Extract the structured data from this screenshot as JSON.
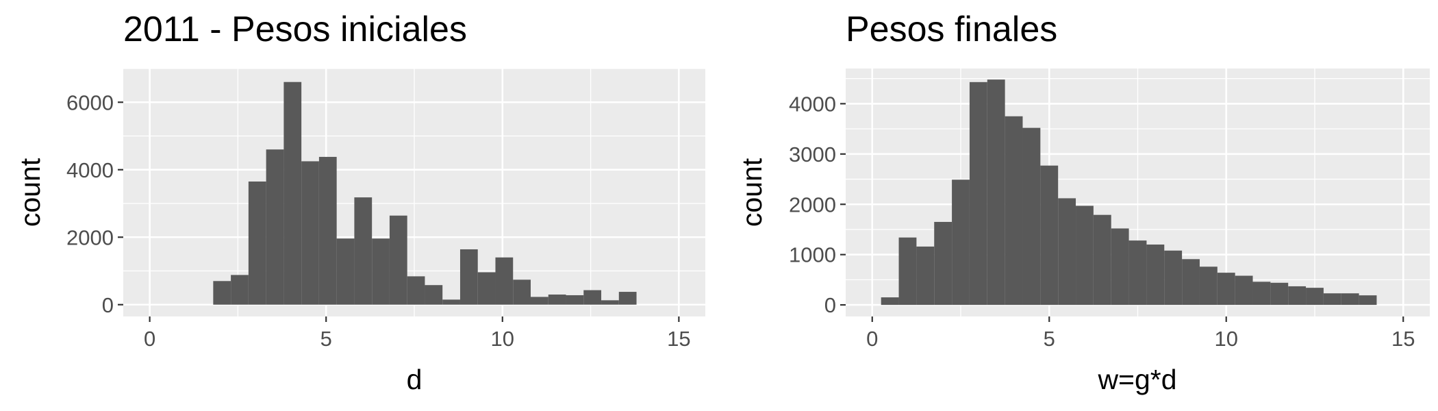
{
  "chart_data": [
    {
      "type": "bar",
      "title": "2011 - Pesos iniciales",
      "xlabel": "d",
      "ylabel": "count",
      "xlim": [
        -0.75,
        15.75
      ],
      "ylim": [
        -350,
        7000
      ],
      "xticks": [
        0,
        5,
        10,
        15
      ],
      "xtick_labels": [
        "0",
        "5",
        "10",
        "15"
      ],
      "yticks": [
        0,
        2000,
        4000,
        6000
      ],
      "ytick_labels": [
        "0",
        "2000",
        "4000",
        "6000"
      ],
      "grid": true,
      "bin_width": 0.5,
      "bins": [
        {
          "x0": 1.8,
          "count": 700
        },
        {
          "x0": 2.3,
          "count": 880
        },
        {
          "x0": 2.8,
          "count": 3650
        },
        {
          "x0": 3.3,
          "count": 4600
        },
        {
          "x0": 3.8,
          "count": 6600
        },
        {
          "x0": 4.3,
          "count": 4250
        },
        {
          "x0": 4.8,
          "count": 4380
        },
        {
          "x0": 5.3,
          "count": 1960
        },
        {
          "x0": 5.8,
          "count": 3180
        },
        {
          "x0": 6.3,
          "count": 1960
        },
        {
          "x0": 6.8,
          "count": 2640
        },
        {
          "x0": 7.3,
          "count": 840
        },
        {
          "x0": 7.8,
          "count": 580
        },
        {
          "x0": 8.3,
          "count": 150
        },
        {
          "x0": 8.8,
          "count": 1640
        },
        {
          "x0": 9.3,
          "count": 960
        },
        {
          "x0": 9.8,
          "count": 1400
        },
        {
          "x0": 10.3,
          "count": 740
        },
        {
          "x0": 10.8,
          "count": 230
        },
        {
          "x0": 11.3,
          "count": 300
        },
        {
          "x0": 11.8,
          "count": 280
        },
        {
          "x0": 12.3,
          "count": 430
        },
        {
          "x0": 12.8,
          "count": 130
        },
        {
          "x0": 13.3,
          "count": 380
        }
      ]
    },
    {
      "type": "bar",
      "title": "Pesos finales",
      "xlabel": "w=g*d",
      "ylabel": "count",
      "xlim": [
        -0.75,
        15.75
      ],
      "ylim": [
        -230,
        4700
      ],
      "xticks": [
        0,
        5,
        10,
        15
      ],
      "xtick_labels": [
        "0",
        "5",
        "10",
        "15"
      ],
      "yticks": [
        0,
        1000,
        2000,
        3000,
        4000
      ],
      "ytick_labels": [
        "0",
        "1000",
        "2000",
        "3000",
        "4000"
      ],
      "grid": true,
      "bin_width": 0.5,
      "bins": [
        {
          "x0": 0.25,
          "count": 150
        },
        {
          "x0": 0.75,
          "count": 1340
        },
        {
          "x0": 1.25,
          "count": 1160
        },
        {
          "x0": 1.75,
          "count": 1650
        },
        {
          "x0": 2.25,
          "count": 2490
        },
        {
          "x0": 2.75,
          "count": 4430
        },
        {
          "x0": 3.25,
          "count": 4480
        },
        {
          "x0": 3.75,
          "count": 3750
        },
        {
          "x0": 4.25,
          "count": 3520
        },
        {
          "x0": 4.75,
          "count": 2770
        },
        {
          "x0": 5.25,
          "count": 2120
        },
        {
          "x0": 5.75,
          "count": 1970
        },
        {
          "x0": 6.25,
          "count": 1790
        },
        {
          "x0": 6.75,
          "count": 1520
        },
        {
          "x0": 7.25,
          "count": 1280
        },
        {
          "x0": 7.75,
          "count": 1200
        },
        {
          "x0": 8.25,
          "count": 1080
        },
        {
          "x0": 8.75,
          "count": 910
        },
        {
          "x0": 9.25,
          "count": 760
        },
        {
          "x0": 9.75,
          "count": 640
        },
        {
          "x0": 10.25,
          "count": 580
        },
        {
          "x0": 10.75,
          "count": 460
        },
        {
          "x0": 11.25,
          "count": 440
        },
        {
          "x0": 11.75,
          "count": 370
        },
        {
          "x0": 12.25,
          "count": 340
        },
        {
          "x0": 12.75,
          "count": 230
        },
        {
          "x0": 13.25,
          "count": 230
        },
        {
          "x0": 13.75,
          "count": 190
        }
      ]
    }
  ]
}
